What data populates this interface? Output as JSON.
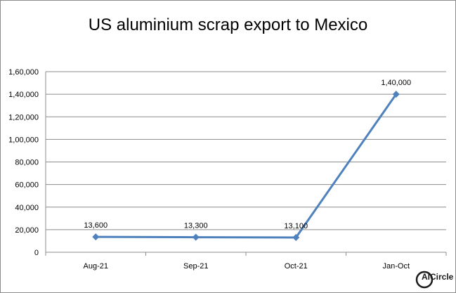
{
  "chart_data": {
    "type": "line",
    "title": "US aluminium scrap export to Mexico",
    "categories": [
      "Aug-21",
      "Sep-21",
      "Oct-21",
      "Jan-Oct"
    ],
    "series": [
      {
        "values": [
          13600,
          13300,
          13100,
          140000
        ],
        "value_labels": [
          "13,600",
          "13,300",
          "13,100",
          "1,40,000"
        ],
        "color": "#4f81bd",
        "marker": "diamond"
      }
    ],
    "ylim": [
      0,
      160000
    ],
    "yticks": [
      0,
      20000,
      40000,
      60000,
      80000,
      100000,
      120000,
      140000,
      160000
    ],
    "ytick_labels": [
      "0",
      "20,000",
      "40,000",
      "60,000",
      "80,000",
      "1,00,000",
      "1,20,000",
      "1,40,000",
      "1,60,000"
    ],
    "grid": true,
    "legend": "none"
  },
  "logo": {
    "text": "Circle",
    "prefix": "Al"
  }
}
